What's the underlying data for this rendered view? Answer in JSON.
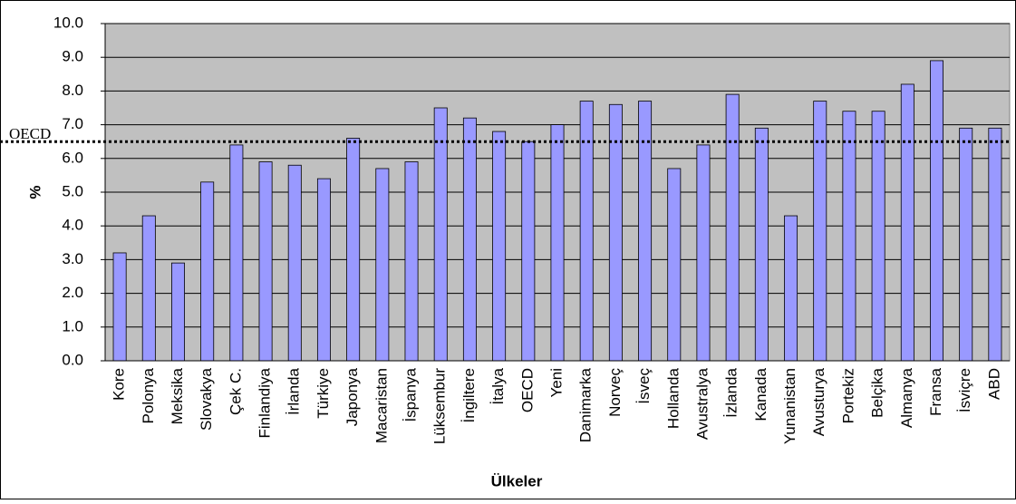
{
  "chart_data": {
    "type": "bar",
    "y_label": "%",
    "x_label": "Ülkeler",
    "categories": [
      "Kore",
      "Polonya",
      "Meksika",
      "Slovakya",
      "Çek C.",
      "Finlandiya",
      "İrlanda",
      "Türkiye",
      "Japonya",
      "Macaristan",
      "İspanya",
      "Lüksembur",
      "İngiltere",
      "İtalya",
      "OECD",
      "Yeni",
      "Danimarka",
      "Norveç",
      "İsveç",
      "Hollanda",
      "Avustralya",
      "İzlanda",
      "Kanada",
      "Yunanistan",
      "Avusturya",
      "Portekiz",
      "Belçika",
      "Almanya",
      "Fransa",
      "İsviçre",
      "ABD"
    ],
    "values": [
      3.2,
      4.3,
      2.9,
      5.3,
      6.4,
      5.9,
      5.8,
      5.4,
      6.6,
      5.7,
      5.9,
      7.5,
      7.2,
      6.8,
      6.5,
      7.0,
      7.7,
      7.6,
      7.7,
      5.7,
      6.4,
      7.9,
      6.9,
      4.3,
      7.7,
      7.4,
      7.4,
      8.2,
      8.9,
      6.9,
      6.9
    ],
    "color": "#9999ff",
    "ylim": [
      0,
      10
    ],
    "yticks": [
      {
        "value": 0,
        "label": "0.0"
      },
      {
        "value": 1,
        "label": "1.0"
      },
      {
        "value": 2,
        "label": "2.0"
      },
      {
        "value": 3,
        "label": "3.0"
      },
      {
        "value": 4,
        "label": "4.0"
      },
      {
        "value": 5,
        "label": "5.0"
      },
      {
        "value": 6,
        "label": "6.0"
      },
      {
        "value": 7,
        "label": "7.0"
      },
      {
        "value": 8,
        "label": "8.0"
      },
      {
        "value": 9,
        "label": "9.0"
      },
      {
        "value": 10,
        "label": "10.0"
      }
    ],
    "grid": true,
    "reference_line": {
      "value": 6.5,
      "label": "OECD"
    }
  }
}
